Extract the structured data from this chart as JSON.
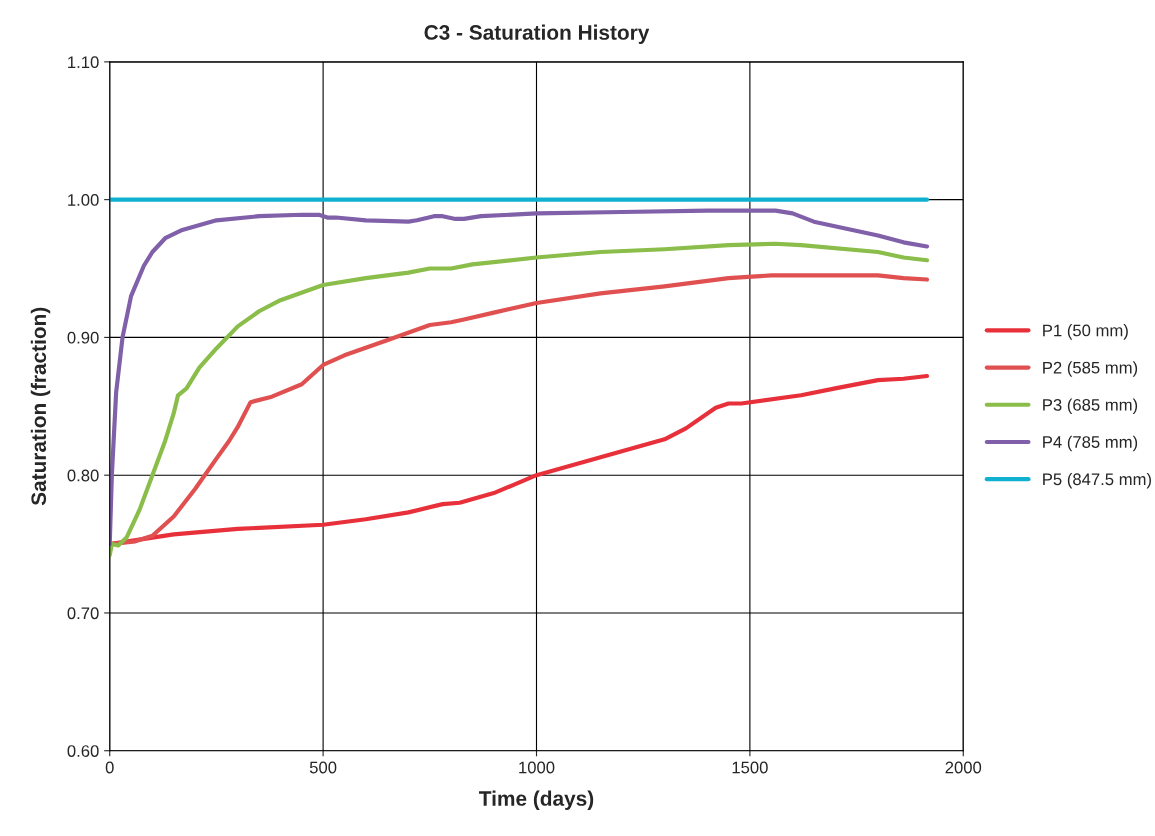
{
  "chart_data": {
    "type": "line",
    "title": "C3 - Saturation History",
    "xlabel": "Time (days)",
    "ylabel": "Saturation (fraction)",
    "xlim": [
      0,
      2000
    ],
    "xticks": [
      0,
      500,
      1000,
      1500,
      2000
    ],
    "ylim": [
      0.6,
      1.1
    ],
    "yticks": [
      {
        "value": 0.6,
        "label": "0.60"
      },
      {
        "value": 0.7,
        "label": "0.70"
      },
      {
        "value": 0.8,
        "label": "0.80"
      },
      {
        "value": 0.9,
        "label": "0.90"
      },
      {
        "value": 1.0,
        "label": "1.00"
      },
      {
        "value": 1.1,
        "label": "1.10"
      }
    ],
    "grid": true,
    "legend": "right",
    "marker": "none",
    "line_style": "solid",
    "series": [
      {
        "name": "P1 (50 mm)",
        "color": "#e8303a",
        "x": [
          0,
          150,
          300,
          500,
          600,
          700,
          780,
          820,
          900,
          1000,
          1150,
          1300,
          1350,
          1420,
          1450,
          1480,
          1620,
          1700,
          1800,
          1860,
          1915
        ],
        "values": [
          0.75,
          0.757,
          0.761,
          0.764,
          0.768,
          0.773,
          0.779,
          0.78,
          0.787,
          0.8,
          0.813,
          0.826,
          0.834,
          0.849,
          0.852,
          0.852,
          0.858,
          0.863,
          0.869,
          0.87,
          0.872
        ]
      },
      {
        "name": "P2 (585 mm)",
        "color": "#e05050",
        "x": [
          0,
          60,
          100,
          150,
          200,
          250,
          280,
          300,
          330,
          380,
          450,
          500,
          550,
          650,
          750,
          800,
          830,
          900,
          1000,
          1150,
          1300,
          1450,
          1550,
          1620,
          1800,
          1860,
          1915
        ],
        "values": [
          0.75,
          0.752,
          0.756,
          0.77,
          0.79,
          0.812,
          0.825,
          0.835,
          0.853,
          0.857,
          0.866,
          0.88,
          0.887,
          0.898,
          0.909,
          0.911,
          0.913,
          0.918,
          0.925,
          0.932,
          0.937,
          0.943,
          0.945,
          0.945,
          0.945,
          0.943,
          0.942
        ]
      },
      {
        "name": "P3 (685 mm)",
        "color": "#8abd4a",
        "x": [
          0,
          5,
          20,
          40,
          70,
          100,
          130,
          150,
          160,
          180,
          210,
          250,
          300,
          350,
          400,
          500,
          600,
          700,
          750,
          800,
          850,
          1000,
          1150,
          1300,
          1450,
          1560,
          1620,
          1800,
          1860,
          1915
        ],
        "values": [
          0.742,
          0.75,
          0.749,
          0.755,
          0.775,
          0.8,
          0.825,
          0.845,
          0.858,
          0.863,
          0.878,
          0.892,
          0.908,
          0.919,
          0.927,
          0.938,
          0.943,
          0.947,
          0.95,
          0.95,
          0.953,
          0.958,
          0.962,
          0.964,
          0.967,
          0.968,
          0.967,
          0.962,
          0.958,
          0.956
        ]
      },
      {
        "name": "P4 (785 mm)",
        "color": "#8060a8",
        "x": [
          0,
          5,
          15,
          30,
          50,
          80,
          100,
          130,
          170,
          250,
          350,
          450,
          490,
          510,
          530,
          600,
          700,
          720,
          760,
          780,
          810,
          830,
          870,
          1000,
          1200,
          1400,
          1560,
          1600,
          1650,
          1800,
          1860,
          1915
        ],
        "values": [
          0.75,
          0.8,
          0.86,
          0.9,
          0.93,
          0.952,
          0.962,
          0.972,
          0.978,
          0.985,
          0.988,
          0.989,
          0.989,
          0.987,
          0.987,
          0.985,
          0.984,
          0.985,
          0.988,
          0.988,
          0.986,
          0.986,
          0.988,
          0.99,
          0.991,
          0.992,
          0.992,
          0.99,
          0.984,
          0.974,
          0.969,
          0.966
        ]
      },
      {
        "name": "P5 (847.5 mm)",
        "color": "#10b0d0",
        "x": [
          0,
          1915
        ],
        "values": [
          1.0,
          1.0
        ]
      }
    ]
  }
}
